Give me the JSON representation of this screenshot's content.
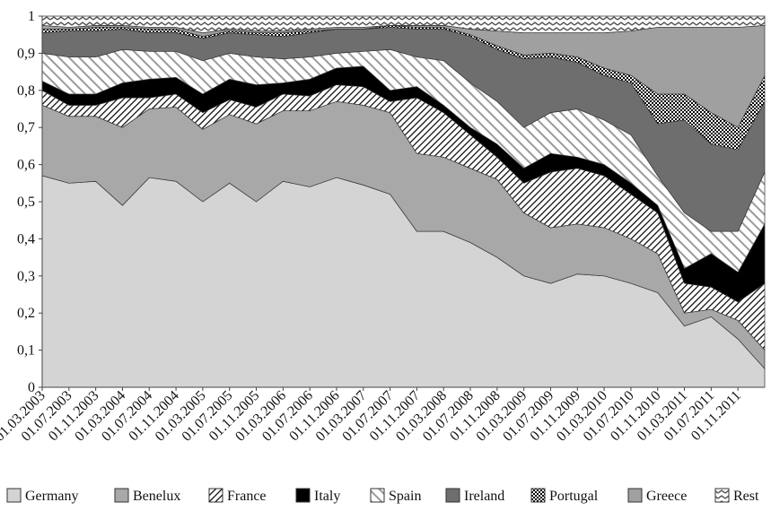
{
  "chart_data": {
    "type": "stacked_area",
    "categories": [
      "01.03.2003",
      "01.07.2003",
      "01.11.2003",
      "01.03.2004",
      "01.07.2004",
      "01.11.2004",
      "01.03.2005",
      "01.07.2005",
      "01.11.2005",
      "01.03.2006",
      "01.07.2006",
      "01.11.2006",
      "01.03.2007",
      "01.07.2007",
      "01.11.2007",
      "01.03.2008",
      "01.07.2008",
      "01.11.2008",
      "01.03.2009",
      "01.07.2009",
      "01.11.2009",
      "01.03.2010",
      "01.07.2010",
      "01.11.2010",
      "01.03.2011",
      "01.07.2011",
      "01.11.2011",
      null
    ],
    "ylim": [
      0,
      1
    ],
    "yticks": [
      0,
      {
        "value": 0.1,
        "label": "0,1"
      },
      {
        "value": 0.2,
        "label": "0,2"
      },
      {
        "value": 0.3,
        "label": "0,3"
      },
      {
        "value": 0.4,
        "label": "0,4"
      },
      {
        "value": 0.5,
        "label": "0,5"
      },
      {
        "value": 0.6,
        "label": "0,6"
      },
      {
        "value": 0.7,
        "label": "0,7"
      },
      {
        "value": 0.8,
        "label": "0,8"
      },
      {
        "value": 0.9,
        "label": "0,9"
      },
      1
    ],
    "series": [
      {
        "name": "Germany",
        "color": "#d4d4d4",
        "values": [
          0.57,
          0.55,
          0.555,
          0.49,
          0.565,
          0.555,
          0.5,
          0.55,
          0.5,
          0.555,
          0.54,
          0.565,
          0.545,
          0.52,
          0.42,
          0.42,
          0.39,
          0.35,
          0.3,
          0.28,
          0.305,
          0.3,
          0.28,
          0.255,
          0.165,
          0.19,
          0.13,
          0.05
        ]
      },
      {
        "name": "Benelux",
        "color": "#a8a8a8",
        "values": [
          0.19,
          0.18,
          0.175,
          0.21,
          0.185,
          0.2,
          0.195,
          0.185,
          0.21,
          0.19,
          0.205,
          0.205,
          0.215,
          0.22,
          0.21,
          0.2,
          0.2,
          0.21,
          0.17,
          0.15,
          0.135,
          0.13,
          0.12,
          0.105,
          0.035,
          0.02,
          0.05,
          0.05
        ]
      },
      {
        "name": "France",
        "color": "#000000",
        "pattern": "diagonal",
        "values": [
          0.04,
          0.03,
          0.03,
          0.08,
          0.03,
          0.035,
          0.045,
          0.04,
          0.045,
          0.045,
          0.04,
          0.045,
          0.05,
          0.03,
          0.15,
          0.12,
          0.09,
          0.06,
          0.08,
          0.15,
          0.15,
          0.14,
          0.12,
          0.11,
          0.08,
          0.06,
          0.05,
          0.18
        ]
      },
      {
        "name": "Italy",
        "color": "#000000",
        "values": [
          0.025,
          0.03,
          0.03,
          0.04,
          0.05,
          0.045,
          0.05,
          0.055,
          0.06,
          0.03,
          0.045,
          0.045,
          0.055,
          0.03,
          0.03,
          0.02,
          0.02,
          0.035,
          0.04,
          0.05,
          0.03,
          0.03,
          0.03,
          0.02,
          0.04,
          0.09,
          0.08,
          0.16
        ]
      },
      {
        "name": "Spain",
        "color": "#9a9a9a",
        "pattern": "stripes",
        "values": [
          0.075,
          0.1,
          0.1,
          0.09,
          0.075,
          0.07,
          0.09,
          0.07,
          0.075,
          0.065,
          0.06,
          0.04,
          0.04,
          0.11,
          0.08,
          0.12,
          0.12,
          0.115,
          0.11,
          0.11,
          0.13,
          0.12,
          0.13,
          0.08,
          0.15,
          0.06,
          0.11,
          0.14
        ]
      },
      {
        "name": "Ireland",
        "color": "#6e6e6e",
        "values": [
          0.055,
          0.07,
          0.07,
          0.055,
          0.05,
          0.05,
          0.06,
          0.055,
          0.06,
          0.06,
          0.065,
          0.065,
          0.06,
          0.06,
          0.075,
          0.085,
          0.125,
          0.14,
          0.185,
          0.15,
          0.125,
          0.12,
          0.14,
          0.14,
          0.25,
          0.235,
          0.22,
          0.19
        ]
      },
      {
        "name": "Portugal",
        "color": "#000000",
        "pattern": "checker",
        "values": [
          0.01,
          0.005,
          0.01,
          0.005,
          0.01,
          0.01,
          0.005,
          0.005,
          0.005,
          0.01,
          0.005,
          0,
          0,
          0.005,
          0.005,
          0.005,
          0.005,
          0.01,
          0.01,
          0.01,
          0.015,
          0.02,
          0.02,
          0.08,
          0.07,
          0.085,
          0.06,
          0.07
        ]
      },
      {
        "name": "Greece",
        "color": "#a0a0a0",
        "values": [
          0.01,
          0.005,
          0.005,
          0.005,
          0.005,
          0.005,
          0.01,
          0.005,
          0.005,
          0.005,
          0.005,
          0.005,
          0.005,
          0,
          0.005,
          0.005,
          0.015,
          0.04,
          0.06,
          0.055,
          0.065,
          0.095,
          0.12,
          0.18,
          0.18,
          0.23,
          0.27,
          0.135
        ]
      },
      {
        "name": "Rest",
        "color": "#555555",
        "pattern": "zigzag",
        "values": [
          0.025,
          0.03,
          0.025,
          0.025,
          0.03,
          0.03,
          0.045,
          0.035,
          0.04,
          0.04,
          0.035,
          0.03,
          0.03,
          0.025,
          0.025,
          0.025,
          0.035,
          0.04,
          0.045,
          0.045,
          0.045,
          0.045,
          0.04,
          0.03,
          0.03,
          0.03,
          0.03,
          0.025
        ]
      }
    ]
  }
}
